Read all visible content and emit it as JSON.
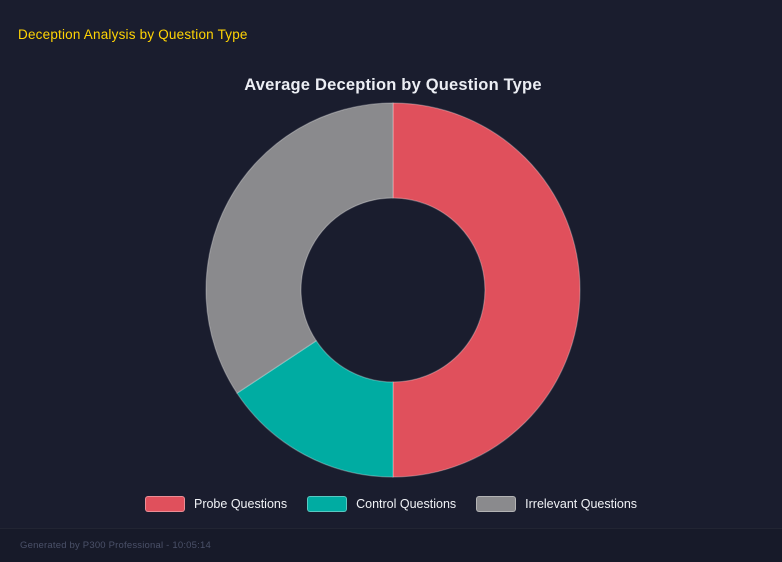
{
  "page": {
    "title": "Deception Analysis by Question Type",
    "footer": "Generated by P300 Professional - 10:05:14"
  },
  "chart_data": {
    "type": "pie",
    "subtype": "donut",
    "title": "Average Deception by Question Type",
    "labels": [
      "Probe Questions",
      "Control Questions",
      "Irrelevant Questions"
    ],
    "values_percent_of_circle": [
      50.0,
      15.7,
      34.3
    ],
    "colors": [
      "#E0505C",
      "#00ACA2",
      "#8A8A8D"
    ],
    "start_angle_deg_clockwise_from_top": 0,
    "inner_radius_ratio": 0.49,
    "legend_position": "bottom",
    "data_labels_visible": false
  },
  "colors": {
    "background": "#1A1D2E",
    "header_text": "#FFD404",
    "chart_title": "#ECEEF4",
    "legend_text": "#F0F2F6",
    "footer_text": "#4B5169",
    "footer_bg": "#171A29",
    "segment_border": "rgba(255,255,255,0.28)"
  }
}
